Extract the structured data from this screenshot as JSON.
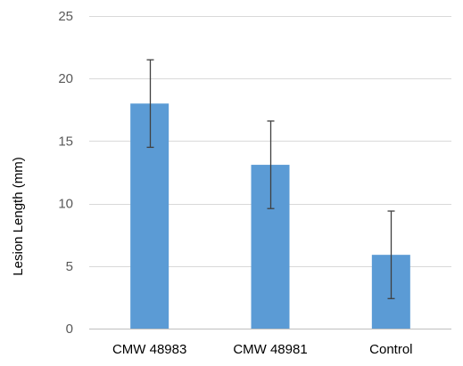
{
  "chart_data": {
    "type": "bar",
    "title": "",
    "xlabel": "",
    "ylabel": "Lesion Length (mm)",
    "categories": [
      "CMW 48983",
      "CMW 48981",
      "Control"
    ],
    "values": [
      18.0,
      13.1,
      5.9
    ],
    "error_upper": [
      21.5,
      16.6,
      9.4
    ],
    "error_lower": [
      14.5,
      9.6,
      2.4
    ],
    "ylim": [
      0,
      25
    ],
    "yticks": [
      0,
      5,
      10,
      15,
      20,
      25
    ],
    "ytick_labels": [
      "0",
      "5",
      "10",
      "15",
      "20",
      "25"
    ],
    "grid": true,
    "legend": "none"
  },
  "colors": {
    "bar": "#5b9bd5",
    "gridline": "#d9d9d9",
    "axis_line": "#bfbfbf",
    "error_bar": "#404040"
  }
}
